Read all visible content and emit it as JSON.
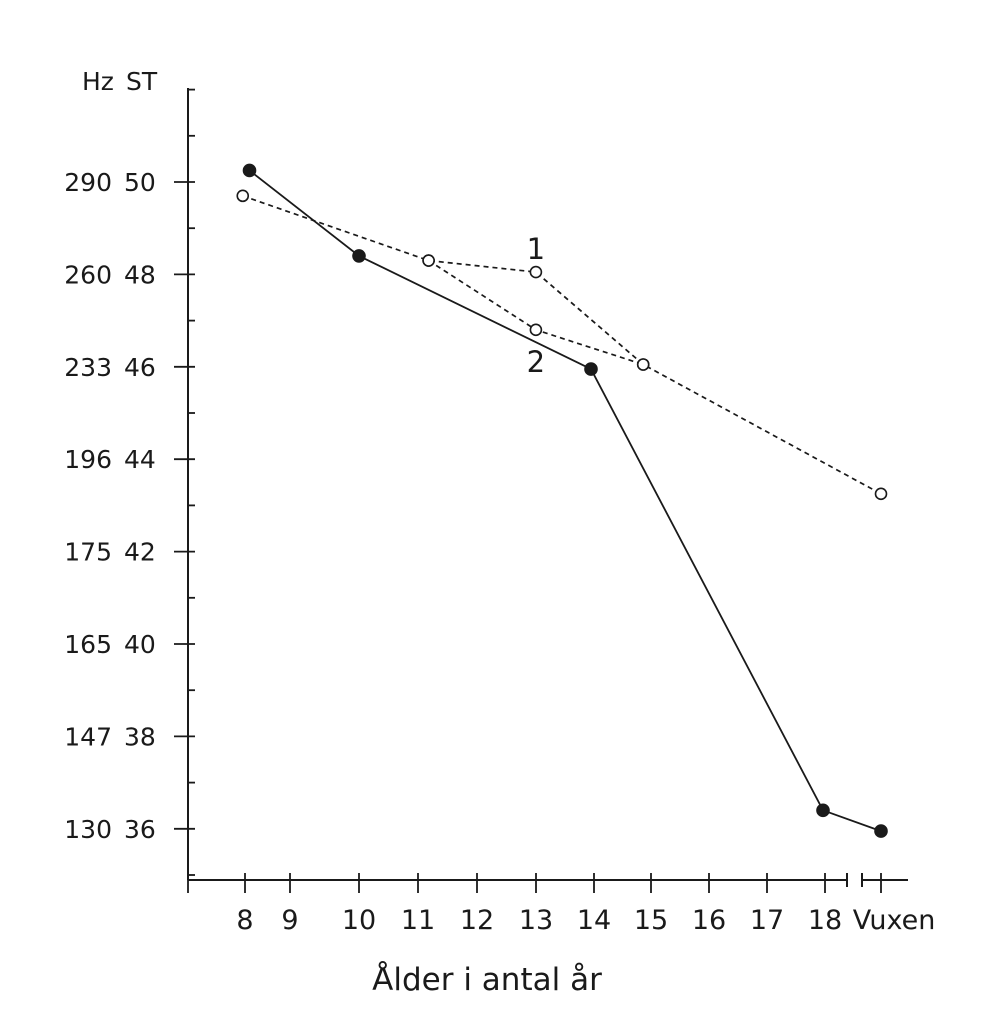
{
  "chart_data": {
    "type": "line",
    "xlabel": "Ålder i antal år",
    "y_units": [
      "Hz",
      "ST"
    ],
    "x_ticks": [
      "8",
      "9",
      "10",
      "11",
      "12",
      "13",
      "14",
      "15",
      "16",
      "17",
      "18",
      "Vuxen"
    ],
    "y_ticks": [
      {
        "st": 50,
        "hz": "290",
        "st_label": "50"
      },
      {
        "st": 48,
        "hz": "260",
        "st_label": "48"
      },
      {
        "st": 46,
        "hz": "233",
        "st_label": "46"
      },
      {
        "st": 44,
        "hz": "196",
        "st_label": "44"
      },
      {
        "st": 42,
        "hz": "175",
        "st_label": "42"
      },
      {
        "st": 40,
        "hz": "165",
        "st_label": "40"
      },
      {
        "st": 38,
        "hz": "147",
        "st_label": "38"
      },
      {
        "st": 36,
        "hz": "130",
        "st_label": "36"
      }
    ],
    "ylim": [
      35,
      52
    ],
    "axis_break_between": [
      "18",
      "Vuxen"
    ],
    "series": [
      {
        "style": "solid line, filled circles",
        "points": [
          {
            "x": 8.1,
            "y": 50.25
          },
          {
            "x": 10,
            "y": 48.4
          },
          {
            "x": 14,
            "y": 45.95
          },
          {
            "x": 18,
            "y": 36.4
          },
          {
            "x": "Vuxen",
            "y": 35.95
          }
        ]
      },
      {
        "style": "dashed line, open circles",
        "points": [
          {
            "x": 7.95,
            "y": 49.7
          },
          {
            "x": 11.2,
            "y": 48.3
          },
          {
            "x": 13.05,
            "y": 48.05
          },
          {
            "x": 14.9,
            "y": 46.05
          },
          {
            "x": "Vuxen",
            "y": 43.25
          }
        ]
      },
      {
        "style": "dashed line, open circles",
        "points": [
          {
            "x": 11.2,
            "y": 48.3
          },
          {
            "x": 13.05,
            "y": 46.8
          },
          {
            "x": 14.9,
            "y": 46.05
          }
        ]
      }
    ],
    "annotations": [
      {
        "text": "1",
        "x": 13.05,
        "y": 48.55
      },
      {
        "text": "2",
        "x": 13.05,
        "y": 46.1
      }
    ]
  }
}
